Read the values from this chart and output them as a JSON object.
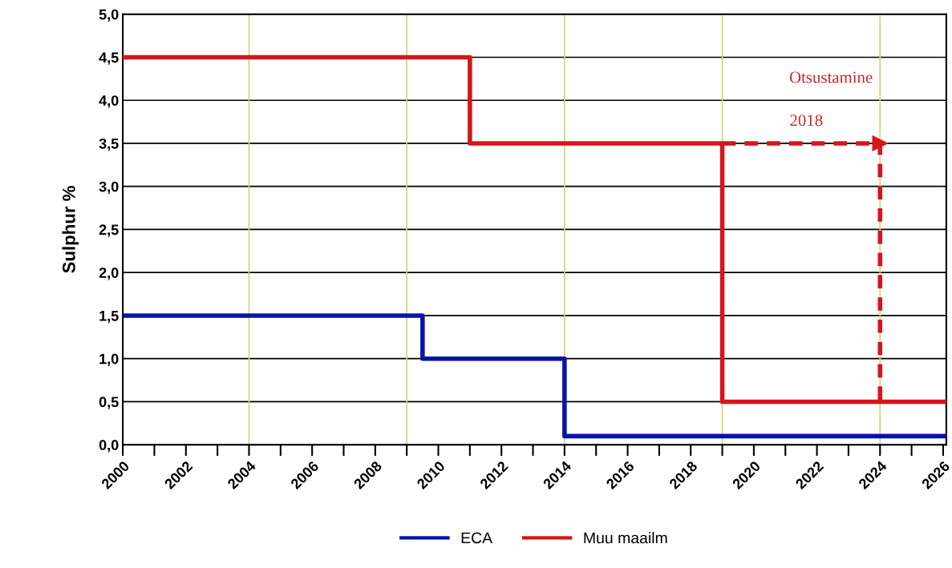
{
  "chart_data": {
    "type": "step",
    "ylabel": "Sulphur %",
    "xlim": [
      2000,
      2026.1
    ],
    "ylim": [
      0,
      5
    ],
    "xticks": [
      2000,
      {
        "value": 2001,
        "label": null
      },
      2002,
      {
        "value": 2003,
        "label": null
      },
      2004,
      {
        "value": 2005,
        "label": null
      },
      2006,
      {
        "value": 2007,
        "label": null
      },
      2008,
      {
        "value": 2009,
        "label": null
      },
      2010,
      {
        "value": 2011,
        "label": null
      },
      2012,
      {
        "value": 2013,
        "label": null
      },
      2014,
      {
        "value": 2015,
        "label": null
      },
      2016,
      {
        "value": 2017,
        "label": null
      },
      2018,
      {
        "value": 2019,
        "label": null
      },
      2020,
      {
        "value": 2021,
        "label": null
      },
      2022,
      {
        "value": 2023,
        "label": null
      },
      2024,
      {
        "value": 2025,
        "label": null
      },
      2026
    ],
    "yticks": [
      {
        "value": 0,
        "label": "0,0"
      },
      {
        "value": 0.5,
        "label": "0,5"
      },
      {
        "value": 1,
        "label": "1,0"
      },
      {
        "value": 1.5,
        "label": "1,5"
      },
      {
        "value": 2,
        "label": "2,0"
      },
      {
        "value": 2.5,
        "label": "2,5"
      },
      {
        "value": 3,
        "label": "3,0"
      },
      {
        "value": 3.5,
        "label": "3,5"
      },
      {
        "value": 4,
        "label": "4,0"
      },
      {
        "value": 4.5,
        "label": "4,5"
      },
      {
        "value": 5,
        "label": "5,0"
      }
    ],
    "grid": "y",
    "legend": "bottom",
    "marker": "none",
    "ref_lines": [
      {
        "axis": "x",
        "value": 2004,
        "color": "#c8d878"
      },
      {
        "axis": "x",
        "value": 2009,
        "color": "#c8d878"
      },
      {
        "axis": "x",
        "value": 2014,
        "color": "#c8d878"
      },
      {
        "axis": "x",
        "value": 2019,
        "color": "#c8d878"
      },
      {
        "axis": "x",
        "value": 2024,
        "color": "#c8d878"
      }
    ],
    "series": [
      {
        "name": "ECA",
        "color": "#0a14a8",
        "x": [
          2000,
          2009.5,
          2014,
          2026.1
        ],
        "values": [
          1.5,
          1.0,
          0.1,
          0.1
        ]
      },
      {
        "name": "Muu maailm",
        "color": "#d8141c",
        "x": [
          2000,
          2011,
          2019,
          2026.1
        ],
        "values": [
          4.5,
          3.5,
          0.5,
          0.5
        ]
      },
      {
        "color": "#d8141c",
        "line_style": "dashed",
        "x": [
          2019,
          2024,
          2024
        ],
        "values": [
          3.5,
          3.5,
          0.5
        ]
      }
    ],
    "annotations": [
      "Otsustamine",
      "2018"
    ]
  }
}
